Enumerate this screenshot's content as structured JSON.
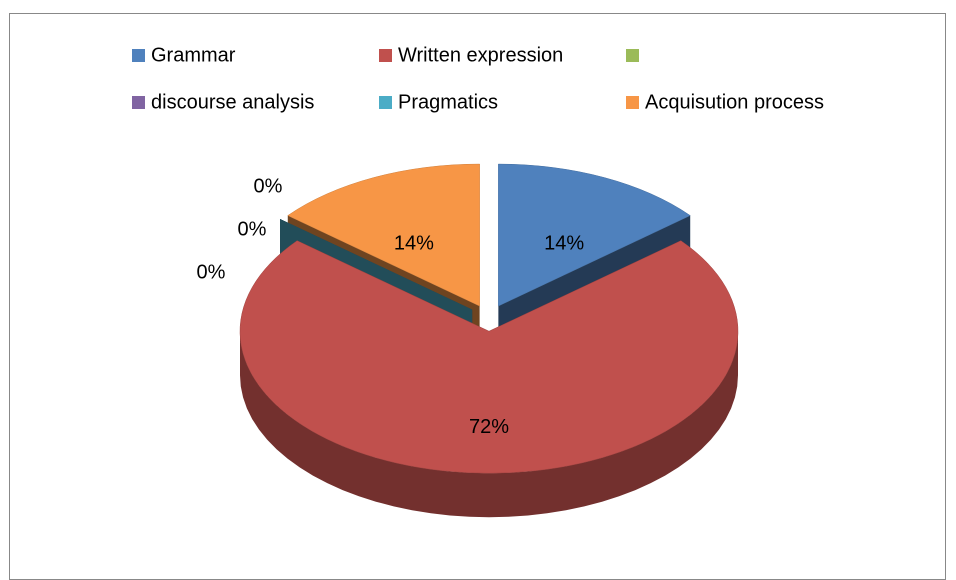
{
  "chart_data": {
    "type": "pie",
    "categories": [
      "Grammar",
      "Written expression",
      null,
      "discourse analysis",
      "Pragmatics",
      "Acquisution process"
    ],
    "values": [
      14,
      72,
      0,
      0,
      0,
      14
    ],
    "value_labels": [
      "14%",
      "72%",
      "0%",
      "0%",
      "0%",
      "14%"
    ],
    "colors": [
      "#4f81bd",
      "#c0504d",
      "#9bbb59",
      "#8064a2",
      "#4bacc6",
      "#f79646"
    ]
  }
}
